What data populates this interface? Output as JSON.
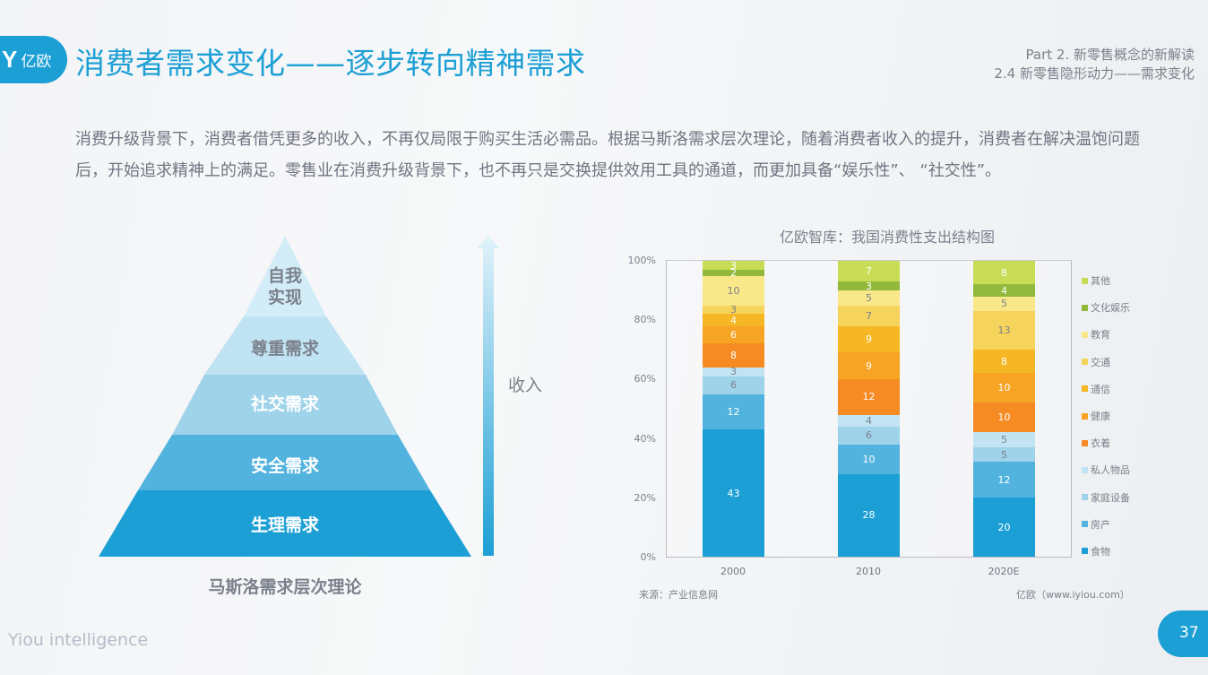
{
  "header": {
    "logo_glyph": "Y",
    "logo_text": "亿欧",
    "title": "消费者需求变化——逐步转向精神需求",
    "section_line1": "Part 2. 新零售概念的新解读",
    "section_line2": "2.4 新零售隐形动力——需求变化"
  },
  "body": {
    "paragraph": "消费升级背景下，消费者借凭更多的收入，不再仅局限于购买生活必需品。根据马斯洛需求层次理论，随着消费者收入的提升，消费者在解决温饱问题后，开始追求精神上的满足。零售业在消费升级背景下，也不再只是交换提供效用工具的通道，而更加具备“娱乐性”、 “社交性”。"
  },
  "pyramid": {
    "levels": [
      {
        "label_line1": "自我",
        "label_line2": "实现",
        "color": "#d3edf8",
        "text_color": "#7b818c"
      },
      {
        "label": "尊重需求",
        "color": "#bfe3f2",
        "text_color": "#7b818c"
      },
      {
        "label": "社交需求",
        "color": "#9fd3ea",
        "text_color": "#ffffff"
      },
      {
        "label": "安全需求",
        "color": "#52b3de",
        "text_color": "#ffffff"
      },
      {
        "label": "生理需求",
        "color": "#1c9fd5",
        "text_color": "#ffffff"
      }
    ],
    "caption": "马斯洛需求层次理论",
    "arrow_label": "收入",
    "arrow_icon": "up-arrow-gradient"
  },
  "chart_data": {
    "type": "bar",
    "stacked": true,
    "title": "亿欧智库：我国消费性支出结构图",
    "xlabel": "",
    "ylabel": "",
    "categories": [
      "2000",
      "2010",
      "2020E"
    ],
    "yticks": [
      "0%",
      "20%",
      "40%",
      "60%",
      "80%",
      "100%"
    ],
    "ylim": [
      0,
      100
    ],
    "grid": false,
    "legend_position": "right",
    "series": [
      {
        "name": "食物",
        "color": "#1c9fd5",
        "values": [
          43,
          28,
          20
        ],
        "label_dark": false
      },
      {
        "name": "房产",
        "color": "#52b3de",
        "values": [
          12,
          10,
          12
        ],
        "label_dark": false
      },
      {
        "name": "家庭设备",
        "color": "#9fd3ea",
        "values": [
          6,
          6,
          5
        ],
        "label_dark": true
      },
      {
        "name": "私人物品",
        "color": "#c1e3f2",
        "values": [
          3,
          4,
          5
        ],
        "label_dark": true
      },
      {
        "name": "衣着",
        "color": "#f68b23",
        "values": [
          8,
          12,
          10
        ],
        "label_dark": false
      },
      {
        "name": "健康",
        "color": "#f7a324",
        "values": [
          6,
          9,
          10
        ],
        "label_dark": false
      },
      {
        "name": "通信",
        "color": "#f5b723",
        "values": [
          4,
          9,
          8
        ],
        "label_dark": false
      },
      {
        "name": "交通",
        "color": "#f6d35a",
        "values": [
          3,
          7,
          13
        ],
        "label_dark": true
      },
      {
        "name": "教育",
        "color": "#f8e88a",
        "values": [
          10,
          5,
          5
        ],
        "label_dark": true
      },
      {
        "name": "文化娱乐",
        "color": "#93b93c",
        "values": [
          2,
          3,
          4
        ],
        "label_dark": false
      },
      {
        "name": "其他",
        "color": "#c8dc55",
        "values": [
          3,
          7,
          8
        ],
        "label_dark": false
      }
    ],
    "source": "来源：产业信息网",
    "credit": "亿欧（www.iyiou.com）"
  },
  "footer": {
    "brand": "Yiou intelligence",
    "page_number": "37"
  }
}
